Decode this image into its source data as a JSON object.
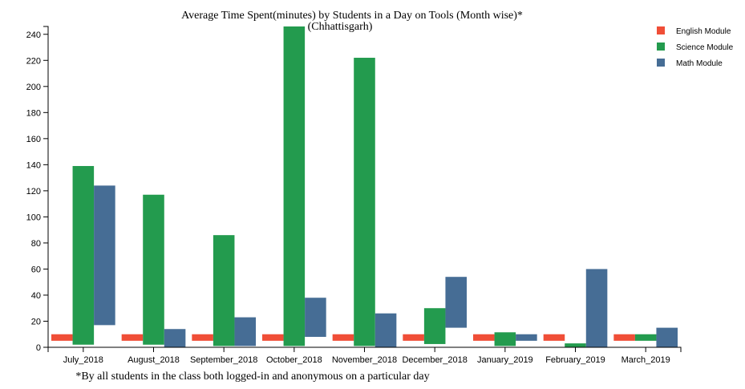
{
  "chart_data": {
    "type": "bar",
    "title": "Average Time Spent(minutes) by Students in a Day on Tools (Month wise)*",
    "subtitle": "(Chhattisgarh)",
    "footnote": "*By all students in the class both logged-in and anonymous on a particular day",
    "xlabel": "",
    "ylabel": "",
    "ylim": [
      0,
      246
    ],
    "yticks": [
      0,
      20,
      40,
      60,
      80,
      100,
      120,
      140,
      160,
      180,
      200,
      220,
      240
    ],
    "categories": [
      "July_2018",
      "August_2018",
      "September_2018",
      "October_2018",
      "November_2018",
      "December_2018",
      "January_2019",
      "February_2019",
      "March_2019"
    ],
    "series": [
      {
        "name": "English Module",
        "color": "#f04e37",
        "ranges": [
          [
            5,
            10
          ],
          [
            5,
            10
          ],
          [
            5,
            10
          ],
          [
            5,
            10
          ],
          [
            5,
            10
          ],
          [
            5,
            10
          ],
          [
            5,
            10
          ],
          [
            5,
            10
          ],
          [
            5,
            10
          ]
        ]
      },
      {
        "name": "Science Module",
        "color": "#239b4e",
        "ranges": [
          [
            2,
            139
          ],
          [
            2,
            117
          ],
          [
            1,
            86
          ],
          [
            1,
            246
          ],
          [
            1,
            222
          ],
          [
            2.5,
            30
          ],
          [
            1,
            11.5
          ],
          [
            0,
            3
          ],
          [
            5,
            10
          ]
        ]
      },
      {
        "name": "Math Module",
        "color": "#466d95",
        "ranges": [
          [
            17,
            124
          ],
          [
            0,
            14
          ],
          [
            1,
            23
          ],
          [
            8,
            38
          ],
          [
            0,
            26
          ],
          [
            15,
            54
          ],
          [
            5,
            10
          ],
          [
            0,
            60
          ],
          [
            0,
            15
          ]
        ]
      }
    ],
    "legend": "top-right",
    "grid": false
  }
}
